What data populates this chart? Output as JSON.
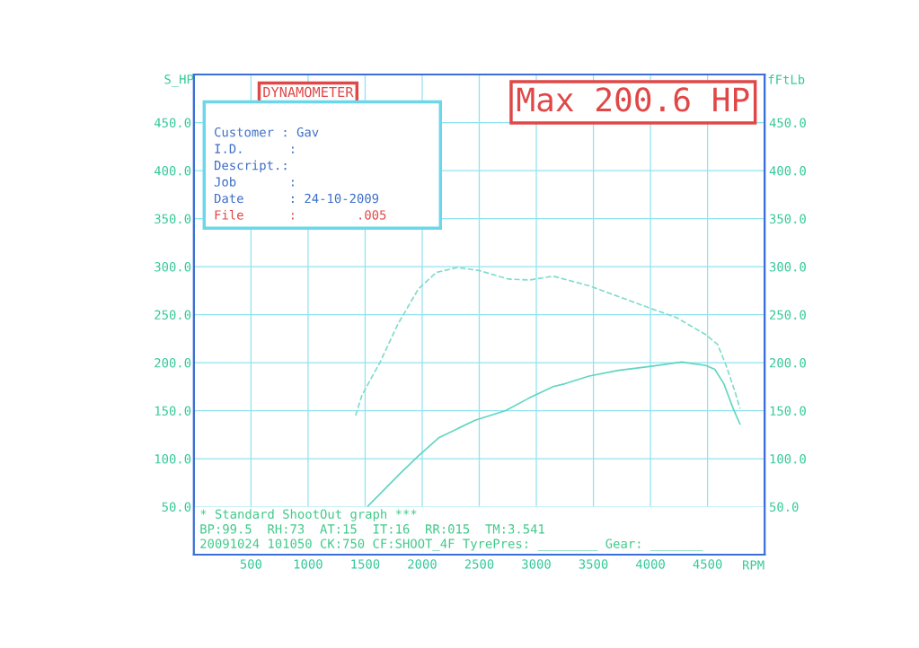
{
  "chart_data": {
    "type": "line",
    "title": "DYNAMOMETER",
    "xlabel": "RPM",
    "ylabel": "S_HP",
    "y2label": "fFtLb",
    "xlim": [
      0,
      5000
    ],
    "xticks": [
      500,
      1000,
      1500,
      2000,
      2500,
      3000,
      3500,
      4000,
      4500
    ],
    "ylim": [
      0,
      500
    ],
    "yticks": [
      {
        "value": 50,
        "label": "50.0"
      },
      {
        "value": 100,
        "label": "100.0"
      },
      {
        "value": 150,
        "label": "150.0"
      },
      {
        "value": 200,
        "label": "200.0"
      },
      {
        "value": 250,
        "label": "250.0"
      },
      {
        "value": 300,
        "label": "300.0"
      },
      {
        "value": 350,
        "label": "350.0"
      },
      {
        "value": 400,
        "label": "400.0"
      },
      {
        "value": 450,
        "label": "450.0"
      }
    ],
    "y2lim": [
      0,
      500
    ],
    "y2ticks": [
      {
        "value": 50,
        "label": "50.0"
      },
      {
        "value": 100,
        "label": "100.0"
      },
      {
        "value": 150,
        "label": "150.0"
      },
      {
        "value": 200,
        "label": "200.0"
      },
      {
        "value": 250,
        "label": "250.0"
      },
      {
        "value": 300,
        "label": "300.0"
      },
      {
        "value": 350,
        "label": "350.0"
      },
      {
        "value": 400,
        "label": "400.0"
      },
      {
        "value": 450,
        "label": "450.0"
      }
    ],
    "grid": true,
    "marker": "none",
    "series": [
      {
        "color": "#5fd6c0",
        "line_style": "solid",
        "x": [
          1511,
          1653,
          1810,
          1968,
          2149,
          2463,
          2731,
          2935,
          3148,
          3250,
          3463,
          3722,
          3990,
          4273,
          4486,
          4564,
          4643,
          4722,
          4784
        ],
        "values": [
          49,
          66,
          85,
          103,
          122,
          140,
          150,
          163,
          175,
          178,
          186,
          192,
          196,
          200.6,
          197,
          193,
          178,
          153,
          136
        ]
      },
      {
        "color": "#7fdccc",
        "line_style": "dashed",
        "x": [
          1417,
          1472,
          1629,
          1787,
          1968,
          2125,
          2306,
          2495,
          2755,
          2935,
          3148,
          3463,
          3990,
          4226,
          4486,
          4588,
          4666,
          4745,
          4784
        ],
        "values": [
          145,
          166,
          200,
          240,
          277,
          294,
          299,
          296,
          287,
          286,
          290,
          280,
          257,
          247,
          229,
          219,
          196,
          168,
          152
        ]
      }
    ],
    "annotations": [
      "Max 200.6 HP",
      "Customer : Gav",
      "I.D.      :",
      "Descript.:",
      "Job       :",
      "Date      : 24-10-2009",
      "File      :        .005",
      "* Standard ShootOut graph ***",
      "BP:99.5  RH:73  AT:15  IT:16  RR:015  TM:3.541",
      "20091024 101050 CK:750 CF:SHOOT_4F TyrePres: ________ Gear: _______"
    ]
  }
}
